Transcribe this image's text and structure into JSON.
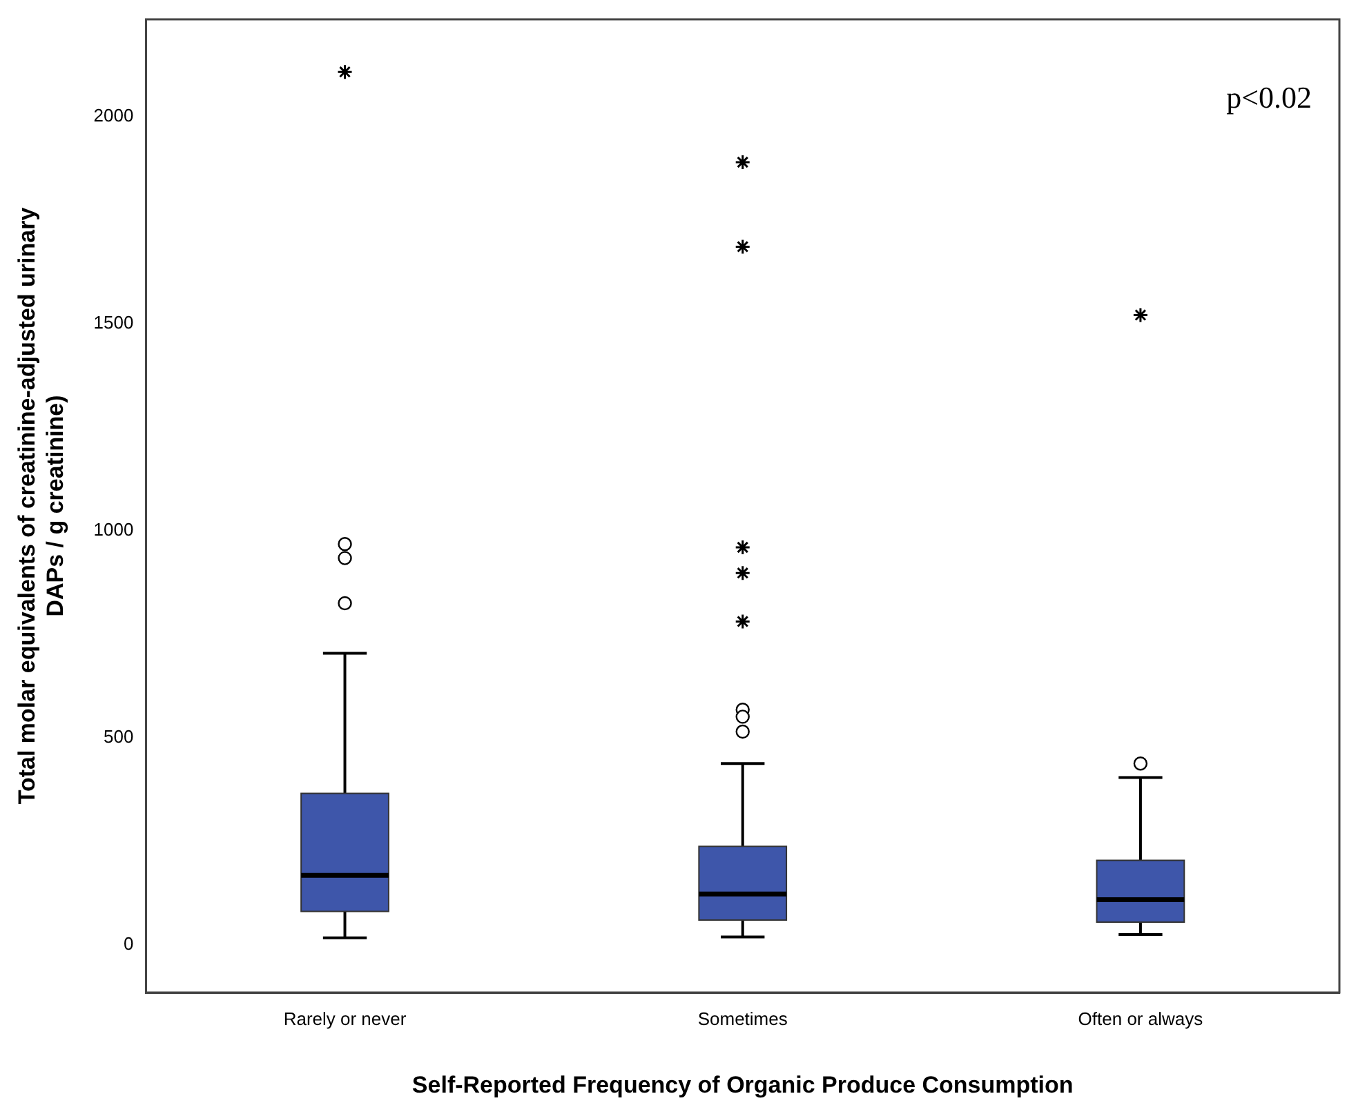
{
  "chart_data": {
    "type": "box",
    "xlabel": "Self-Reported Frequency of Organic Produce Consumption",
    "ylabel": "Total molar equivalents of creatinine-adjusted urinary DAPs / g creatinine)",
    "categories": [
      "Rarely or never",
      "Sometimes",
      "Often or always"
    ],
    "series": [
      {
        "type": "box",
        "color": "#3e56aa",
        "boxes": [
          {
            "low": 17,
            "q1": 81,
            "median": 168,
            "q3": 366,
            "high": 704,
            "outliers": [
              968,
              934,
              825
            ]
          },
          {
            "low": 19,
            "q1": 60,
            "median": 123,
            "q3": 238,
            "high": 438,
            "outliers": [
              568,
              551,
              515
            ]
          },
          {
            "low": 25,
            "q1": 55,
            "median": 109,
            "q3": 204,
            "high": 404,
            "outliers": [
              438
            ]
          }
        ]
      },
      {
        "type": "scatter",
        "color": "#000000",
        "marker": "cross",
        "x": [
          "Rarely or never",
          "Sometimes",
          "Sometimes",
          "Sometimes",
          "Sometimes",
          "Sometimes",
          "Often or always"
        ],
        "values": [
          2108,
          1890,
          1686,
          960,
          898,
          781,
          1521
        ]
      }
    ],
    "ylim": [
      -115,
      2235
    ],
    "yticks": [
      0,
      500,
      1000,
      1500,
      2000
    ],
    "grid": false,
    "legend": false,
    "annotations": [
      "p<0.02"
    ]
  }
}
